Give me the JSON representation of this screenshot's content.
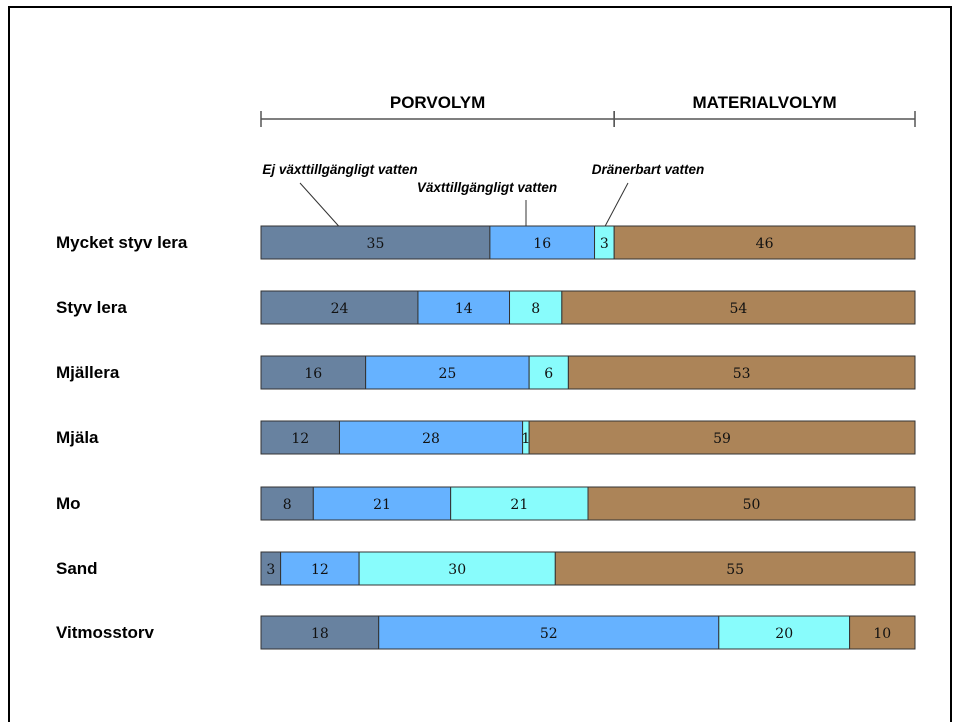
{
  "chart_data": {
    "type": "bar",
    "orientation": "horizontal-stacked",
    "categories": [
      "Mycket styv lera",
      "Styv lera",
      "Mjällera",
      "Mjäla",
      "Mo",
      "Sand",
      "Vitmosstorv"
    ],
    "series": [
      {
        "name": "Ej växttillgängligt vatten",
        "color": "#6882a0",
        "values": [
          35,
          24,
          16,
          12,
          8,
          3,
          18
        ]
      },
      {
        "name": "Växttillgängligt vatten",
        "color": "#66b2ff",
        "values": [
          16,
          14,
          25,
          28,
          21,
          12,
          52
        ]
      },
      {
        "name": "Dränerbart vatten",
        "color": "#88fcfc",
        "values": [
          3,
          8,
          6,
          1,
          21,
          30,
          20
        ]
      },
      {
        "name": "",
        "color": "#ac8458",
        "values": [
          46,
          54,
          53,
          59,
          50,
          55,
          10
        ]
      }
    ],
    "xlim": [
      0,
      100
    ],
    "groups": [
      {
        "label": "PORVOLYM",
        "from": 0,
        "to": 54
      },
      {
        "label": "MATERIALVOLYM",
        "from": 54,
        "to": 100
      }
    ]
  }
}
